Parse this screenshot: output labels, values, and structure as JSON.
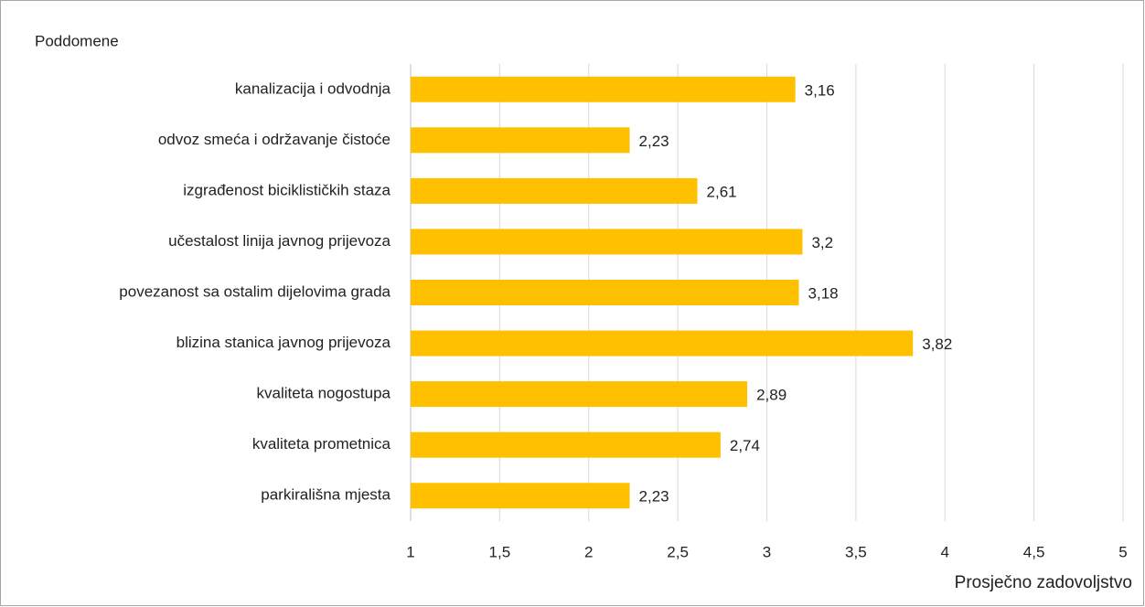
{
  "chart_data": {
    "type": "barh",
    "ylabel": "Poddomene",
    "xlabel": "Prosječno zadovoljstvo",
    "categories": [
      "kanalizacija i odvodnja",
      "odvoz smeća i održavanje čistoće",
      "izgrađenost biciklističkih staza",
      "učestalost linija javnog prijevoza",
      "povezanost sa ostalim dijelovima grada",
      "blizina stanica javnog prijevoza",
      "kvaliteta nogostupa",
      "kvaliteta prometnica",
      "parkirališna mjesta"
    ],
    "values": [
      3.16,
      2.23,
      2.61,
      3.2,
      3.18,
      3.82,
      2.89,
      2.74,
      2.23
    ],
    "value_labels": [
      "3,16",
      "2,23",
      "2,61",
      "3,2",
      "3,18",
      "3,82",
      "2,89",
      "2,74",
      "2,23"
    ],
    "color": "#ffc000",
    "xlim": [
      1,
      5
    ],
    "xticks": [
      1,
      {
        "value": 1.5,
        "label": "1,5"
      },
      2,
      {
        "value": 2.5,
        "label": "2,5"
      },
      3,
      {
        "value": 3.5,
        "label": "3,5"
      },
      4,
      {
        "value": 4.5,
        "label": "4,5"
      },
      5
    ],
    "grid": true
  }
}
